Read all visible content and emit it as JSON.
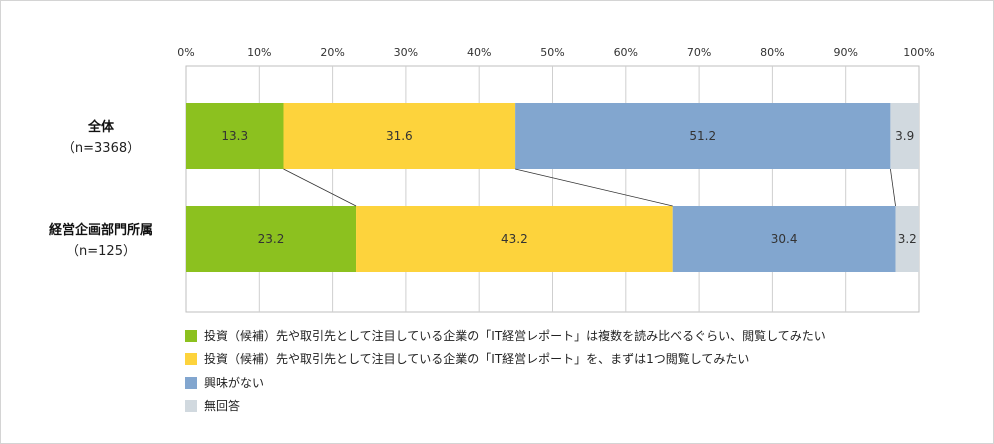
{
  "chart_data": {
    "type": "bar",
    "orientation": "horizontal",
    "stacked": true,
    "percent_stacked": true,
    "xlim": [
      0,
      100
    ],
    "x_ticks": [
      "0%",
      "10%",
      "20%",
      "30%",
      "40%",
      "50%",
      "60%",
      "70%",
      "80%",
      "90%",
      "100%"
    ],
    "categories": [
      {
        "name": "全体",
        "n": "（n=3368）"
      },
      {
        "name": "経営企画部門所属",
        "n": "（n=125）"
      }
    ],
    "series": [
      {
        "name": "投資（候補）先や取引先として注目している企業の「IT経営レポート」は複数を読み比べるぐらい、閲覧してみたい",
        "color": "#8cc11f",
        "values": [
          13.3,
          23.2
        ]
      },
      {
        "name": "投資（候補）先や取引先として注目している企業の「IT経営レポート」を、まずは1つ閲覧してみたい",
        "color": "#fdd33c",
        "values": [
          31.6,
          43.2
        ]
      },
      {
        "name": "興味がない",
        "color": "#82a6cf",
        "values": [
          51.2,
          30.4
        ]
      },
      {
        "name": "無回答",
        "color": "#d1d9df",
        "values": [
          3.9,
          3.2
        ]
      }
    ],
    "legend_position": "bottom",
    "grid": true,
    "connector_lines": true
  }
}
